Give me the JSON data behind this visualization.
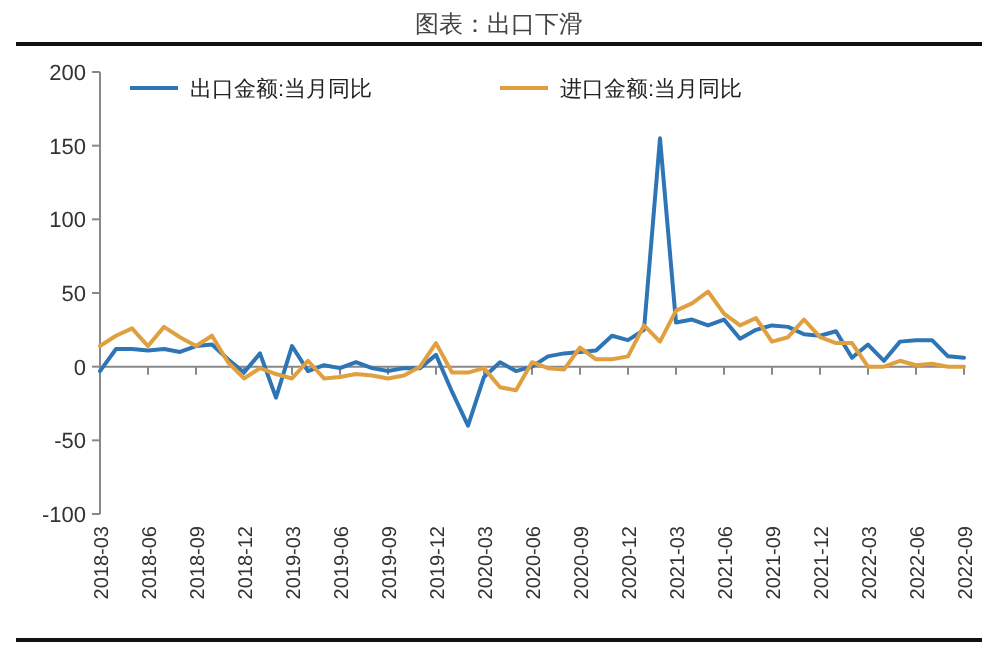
{
  "chart_data": {
    "type": "line",
    "title": "图表：出口下滑",
    "categories": [
      "2018-03",
      null,
      null,
      "2018-06",
      null,
      null,
      "2018-09",
      null,
      null,
      "2018-12",
      null,
      null,
      "2019-03",
      null,
      null,
      "2019-06",
      null,
      null,
      "2019-09",
      null,
      null,
      "2019-12",
      null,
      null,
      "2020-03",
      null,
      null,
      "2020-06",
      null,
      null,
      "2020-09",
      null,
      null,
      "2020-12",
      null,
      null,
      "2021-03",
      null,
      null,
      "2021-06",
      null,
      null,
      "2021-09",
      null,
      null,
      "2021-12",
      null,
      null,
      "2022-03",
      null,
      null,
      "2022-06",
      null,
      null,
      "2022-09"
    ],
    "series": [
      {
        "name": "出口金额:当月同比",
        "color": "#2e75b6",
        "values": [
          -3,
          12,
          12,
          11,
          12,
          10,
          14,
          15,
          5,
          -4,
          9,
          -21,
          14,
          -3,
          1,
          -1,
          3,
          -1,
          -3,
          -1,
          -1,
          8,
          -17,
          -40,
          -7,
          3,
          -3,
          0,
          7,
          9,
          10,
          11,
          21,
          18,
          25,
          155,
          30,
          32,
          28,
          32,
          19,
          25,
          28,
          27,
          22,
          21,
          24,
          6,
          15,
          4,
          17,
          18,
          18,
          7,
          6
        ]
      },
      {
        "name": "进口金额:当月同比",
        "color": "#e0a040",
        "values": [
          14,
          21,
          26,
          14,
          27,
          20,
          14,
          21,
          3,
          -8,
          -1,
          -5,
          -8,
          4,
          -8,
          -7,
          -5,
          -6,
          -8,
          -6,
          0,
          16,
          -4,
          -4,
          -1,
          -14,
          -16,
          3,
          -1,
          -2,
          13,
          5,
          5,
          7,
          28,
          17,
          38,
          43,
          51,
          36,
          28,
          33,
          17,
          20,
          32,
          20,
          16,
          16,
          0,
          0,
          4,
          1,
          2,
          0,
          0
        ]
      }
    ],
    "ylim": [
      -100,
      200
    ],
    "yticks": [
      -100,
      -50,
      0,
      50,
      100,
      150,
      200
    ],
    "legend": "top",
    "marker": "none",
    "line_style": "solid"
  }
}
